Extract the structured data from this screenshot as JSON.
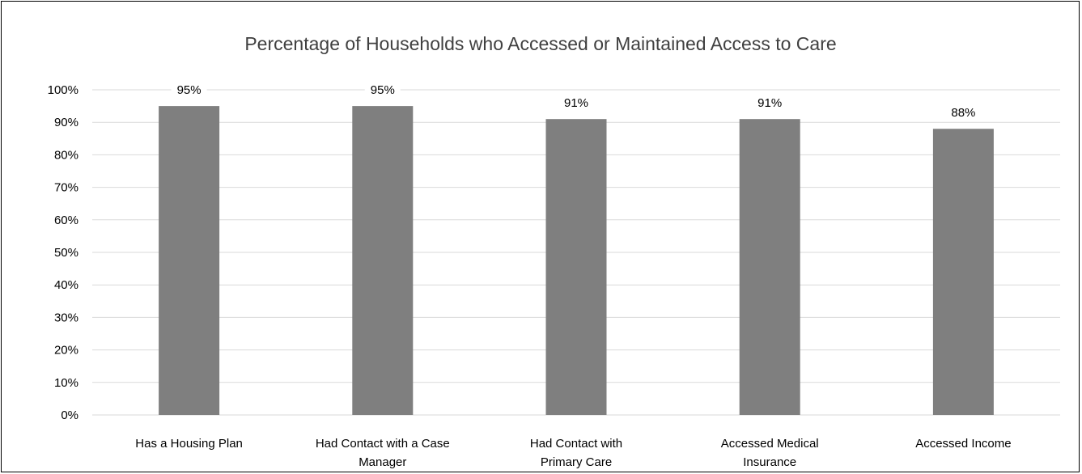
{
  "chart_data": {
    "type": "bar",
    "title": "Percentage of Households who Accessed or Maintained Access to Care",
    "xlabel": "",
    "ylabel": "",
    "ylim": [
      0,
      100
    ],
    "y_ticks": [
      "0%",
      "10%",
      "20%",
      "30%",
      "40%",
      "50%",
      "60%",
      "70%",
      "80%",
      "90%",
      "100%"
    ],
    "categories": [
      [
        "Has a Housing Plan"
      ],
      [
        "Had Contact with a Case",
        "Manager"
      ],
      [
        "Had Contact with",
        "Primary Care"
      ],
      [
        "Accessed Medical",
        "Insurance"
      ],
      [
        "Accessed Income"
      ]
    ],
    "values": [
      95,
      95,
      91,
      91,
      88
    ],
    "data_labels": [
      "95%",
      "95%",
      "91%",
      "91%",
      "88%"
    ],
    "grid": true,
    "legend": "none",
    "colors": {
      "bar": "#7f7f7f",
      "grid": "#d9d9d9",
      "title": "#404040"
    }
  }
}
